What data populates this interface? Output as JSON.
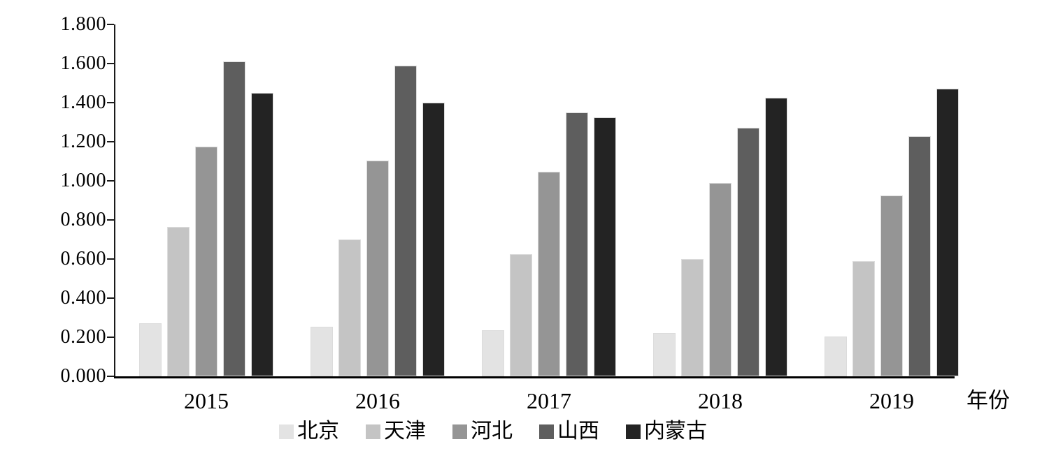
{
  "chart_data": {
    "type": "bar",
    "title": "",
    "xlabel": "年份",
    "ylabel": "",
    "categories": [
      "2015",
      "2016",
      "2017",
      "2018",
      "2019"
    ],
    "series": [
      {
        "name": "北京",
        "color": "#e3e3e3",
        "values": [
          0.27,
          0.255,
          0.235,
          0.22,
          0.205
        ]
      },
      {
        "name": "天津",
        "color": "#c4c4c4",
        "values": [
          0.765,
          0.7,
          0.625,
          0.6,
          0.59
        ]
      },
      {
        "name": "河北",
        "color": "#959595",
        "values": [
          1.175,
          1.105,
          1.045,
          0.99,
          0.925
        ]
      },
      {
        "name": "山西",
        "color": "#5e5e5e",
        "values": [
          1.61,
          1.59,
          1.35,
          1.27,
          1.23
        ]
      },
      {
        "name": "内蒙古",
        "color": "#232323",
        "values": [
          1.45,
          1.4,
          1.325,
          1.425,
          1.47
        ]
      }
    ],
    "ylim": [
      0.0,
      1.8
    ],
    "ytick_step": 0.2,
    "ytick_labels": [
      "0.000",
      "0.200",
      "0.400",
      "0.600",
      "0.800",
      "1.000",
      "1.200",
      "1.400",
      "1.600",
      "1.800"
    ],
    "grid": false,
    "legend_position": "bottom"
  },
  "colors": {
    "axis": "#1a1a1a",
    "background": "#ffffff"
  }
}
